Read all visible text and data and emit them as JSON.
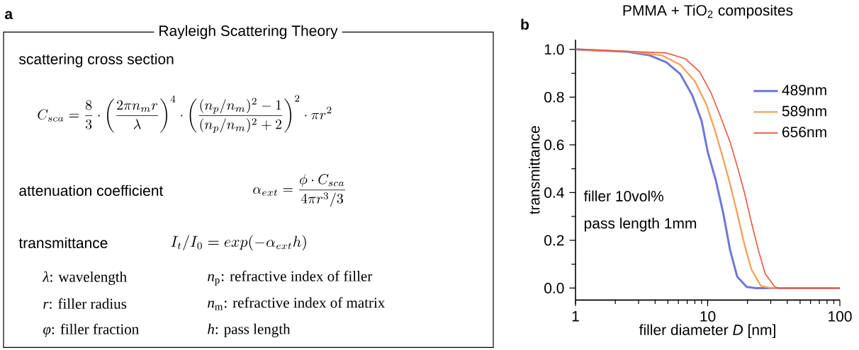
{
  "chart_data": [
    {
      "type": "other",
      "title": "Rayleigh Scattering Theory",
      "annotations": [
        "a",
        "scattering cross section",
        "C_{sca}=\\frac{8}{3}\\cdot\\left(\\frac{2\\pi n_m r}{\\lambda}\\right)^4\\cdot\\left(\\frac{(n_p/n_m)^2-1}{(n_p/n_m)^2+2}\\right)^2\\cdot\\pi r^2",
        "attenuation coefficient",
        "\\alpha_{ext}=\\frac{\\phi\\cdot C_{sca}}{4\\pi r^3/3}",
        "transmittance",
        "I_t/I_0=exp(-\\alpha_{ext}h)",
        "*λ*: wavelength",
        "*n*$_{p}$: refractive index of filler",
        "*r*: filler radius",
        "*n*$_{m}$: refractive index of matrix",
        "*φ*: filler fraction",
        "*h*: pass length"
      ]
    },
    {
      "type": "line",
      "title": "PMMA + TiO$_{2}$ composites",
      "xlabel": "filler diameter *D* [nm]",
      "ylabel": "transmittance",
      "log": "x",
      "xlim": [
        1,
        100
      ],
      "ylim": [
        -0.05,
        1.04
      ],
      "xticks": [
        1,
        10,
        100
      ],
      "yticks": [
        {
          "value": 0,
          "label": "0.0"
        },
        {
          "value": 0.2,
          "label": "0.2"
        },
        {
          "value": 0.4,
          "label": "0.4"
        },
        {
          "value": 0.6,
          "label": "0.6"
        },
        {
          "value": 0.8,
          "label": "0.8"
        },
        {
          "value": 1,
          "label": "1.0"
        }
      ],
      "legend": "top right",
      "annotations": [
        "b",
        "filler 10vol%",
        "pass length 1mm"
      ],
      "series": [
        {
          "name": "489nm",
          "color": "#6f78d8",
          "x": [
            1,
            2.5,
            3.65,
            4.87,
            6.2,
            7.65,
            9.0,
            10,
            11.5,
            13.1,
            14.8,
            16.7,
            19.7,
            23.2,
            100
          ],
          "values": [
            1,
            0.99,
            0.975,
            0.946,
            0.897,
            0.808,
            0.7,
            0.571,
            0.453,
            0.315,
            0.158,
            0.049,
            0.005,
            0,
            0
          ]
        },
        {
          "name": "589nm",
          "color": "#f5a05a",
          "x": [
            1,
            2.7,
            4.5,
            6.2,
            8.0,
            9.8,
            11.5,
            13.1,
            14.8,
            16.7,
            18.9,
            21.4,
            25.2,
            29.7,
            100
          ],
          "values": [
            1,
            0.99,
            0.975,
            0.936,
            0.867,
            0.768,
            0.65,
            0.542,
            0.433,
            0.315,
            0.187,
            0.079,
            0.01,
            0,
            0
          ]
        },
        {
          "name": "656nm",
          "color": "#e8553a",
          "x": [
            1,
            3.0,
            4.9,
            6.8,
            8.7,
            10.6,
            12.5,
            14.8,
            16.7,
            18.9,
            21.4,
            24.2,
            27.3,
            32.2,
            35,
            100
          ],
          "values": [
            1,
            0.99,
            0.985,
            0.96,
            0.906,
            0.818,
            0.719,
            0.611,
            0.512,
            0.404,
            0.276,
            0.158,
            0.059,
            0.005,
            0,
            0
          ]
        }
      ]
    }
  ]
}
